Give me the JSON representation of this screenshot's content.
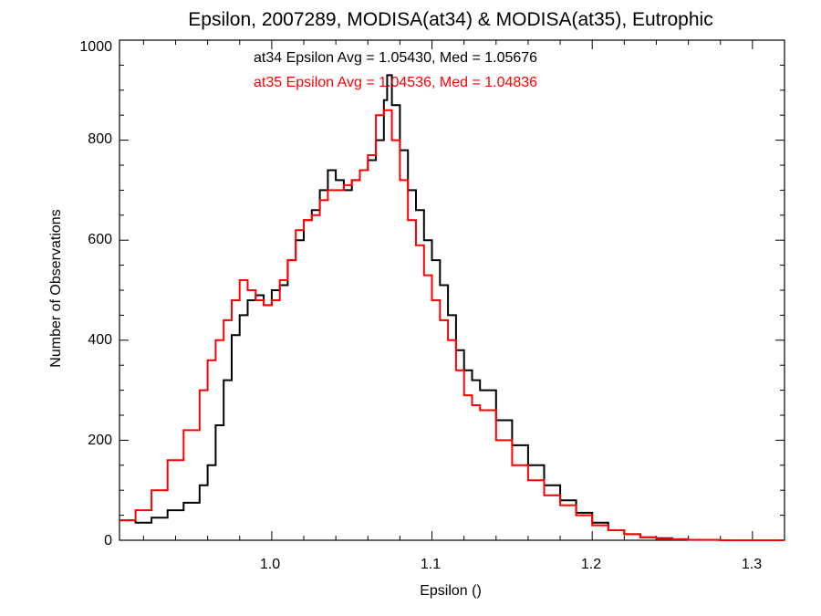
{
  "chart_data": {
    "type": "line",
    "title": "Epsilon, 2007289, MODISA(at34) & MODISA(at35), Eutrophic",
    "xlabel": "Epsilon ()",
    "ylabel": "Number of Observations",
    "xlim": [
      0.905,
      1.32
    ],
    "ylim": [
      0,
      1000
    ],
    "x_ticks": [
      "1.0",
      "1.1",
      "1.2",
      "1.3"
    ],
    "y_ticks": [
      "0",
      "200",
      "400",
      "600",
      "800",
      "1000"
    ],
    "grid": false,
    "annotations": [
      {
        "text": "at34 Epsilon Avg = 1.05430, Med = 1.05676",
        "color": "#000000"
      },
      {
        "text": "at35 Epsilon Avg = 1.04536, Med = 1.04836",
        "color": "#ff0000"
      }
    ],
    "series": [
      {
        "color": "#000000",
        "x": [
          0.905,
          0.915,
          0.925,
          0.935,
          0.945,
          0.955,
          0.96,
          0.965,
          0.97,
          0.975,
          0.98,
          0.985,
          0.99,
          0.995,
          1.0,
          1.005,
          1.01,
          1.015,
          1.02,
          1.025,
          1.03,
          1.035,
          1.04,
          1.045,
          1.05,
          1.055,
          1.06,
          1.065,
          1.07,
          1.072,
          1.075,
          1.08,
          1.085,
          1.09,
          1.095,
          1.1,
          1.105,
          1.11,
          1.115,
          1.12,
          1.125,
          1.13,
          1.14,
          1.15,
          1.16,
          1.17,
          1.18,
          1.19,
          1.2,
          1.21,
          1.22,
          1.23,
          1.24,
          1.25,
          1.26,
          1.28,
          1.3,
          1.32
        ],
        "y": [
          40,
          35,
          45,
          60,
          75,
          110,
          150,
          230,
          320,
          410,
          450,
          480,
          490,
          470,
          500,
          510,
          560,
          600,
          640,
          660,
          700,
          740,
          720,
          700,
          720,
          740,
          760,
          800,
          880,
          930,
          870,
          780,
          700,
          660,
          600,
          560,
          510,
          450,
          380,
          340,
          320,
          300,
          240,
          190,
          150,
          110,
          80,
          55,
          35,
          20,
          12,
          6,
          4,
          2,
          1,
          0,
          0,
          0
        ]
      },
      {
        "color": "#ff0000",
        "x": [
          0.905,
          0.915,
          0.925,
          0.935,
          0.945,
          0.955,
          0.96,
          0.965,
          0.97,
          0.975,
          0.98,
          0.985,
          0.99,
          0.995,
          1.0,
          1.005,
          1.01,
          1.015,
          1.02,
          1.025,
          1.03,
          1.035,
          1.04,
          1.045,
          1.05,
          1.055,
          1.06,
          1.065,
          1.07,
          1.075,
          1.08,
          1.085,
          1.09,
          1.095,
          1.1,
          1.105,
          1.11,
          1.115,
          1.12,
          1.125,
          1.13,
          1.14,
          1.15,
          1.16,
          1.17,
          1.18,
          1.19,
          1.2,
          1.21,
          1.22,
          1.23,
          1.24,
          1.25,
          1.26,
          1.28,
          1.3,
          1.32
        ],
        "y": [
          40,
          60,
          100,
          160,
          220,
          300,
          360,
          400,
          440,
          480,
          520,
          500,
          480,
          470,
          480,
          520,
          560,
          620,
          640,
          650,
          680,
          700,
          700,
          710,
          720,
          740,
          770,
          850,
          860,
          800,
          720,
          640,
          590,
          530,
          480,
          440,
          400,
          340,
          290,
          270,
          260,
          200,
          150,
          120,
          90,
          70,
          50,
          30,
          20,
          12,
          6,
          3,
          2,
          1,
          0,
          0,
          0
        ]
      }
    ]
  }
}
